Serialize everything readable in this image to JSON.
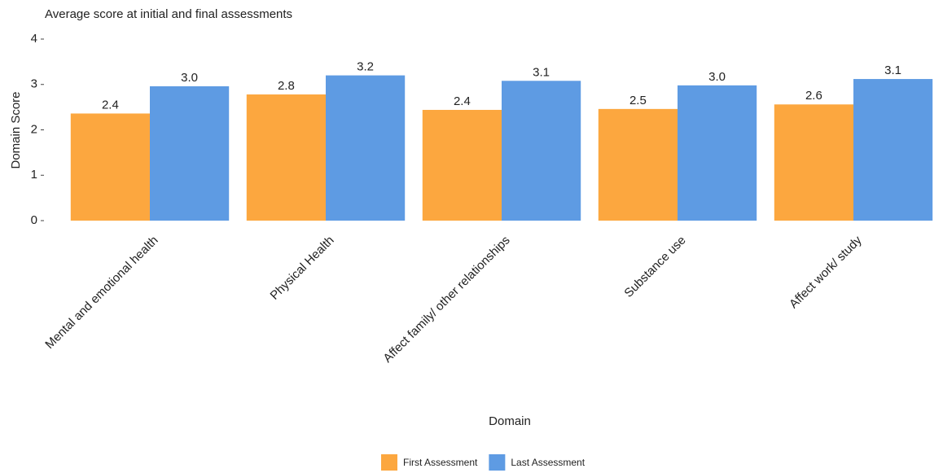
{
  "chart_data": {
    "type": "bar",
    "title": "Average score at initial and final assessments",
    "x_label": "Domain",
    "y_label": "Domain Score",
    "categories": [
      "Mental and emotional health",
      "Physical Health",
      "Affect family/ other relationships",
      "Substance use",
      "Affect work/ study"
    ],
    "series": [
      {
        "name": "First Assessment",
        "color": "#fca73f",
        "values": [
          2.36,
          2.78,
          2.44,
          2.46,
          2.56
        ],
        "value_labels": [
          "2.4",
          "2.8",
          "2.4",
          "2.5",
          "2.6"
        ]
      },
      {
        "name": "Last Assessment",
        "color": "#5e9be3",
        "values": [
          2.96,
          3.2,
          3.08,
          2.98,
          3.12
        ],
        "value_labels": [
          "3.0",
          "3.2",
          "3.1",
          "3.0",
          "3.1"
        ]
      }
    ],
    "ylim": [
      0,
      4
    ],
    "yticks": [
      0,
      1,
      2,
      3,
      4
    ],
    "grid": false,
    "legend": "bottom"
  }
}
